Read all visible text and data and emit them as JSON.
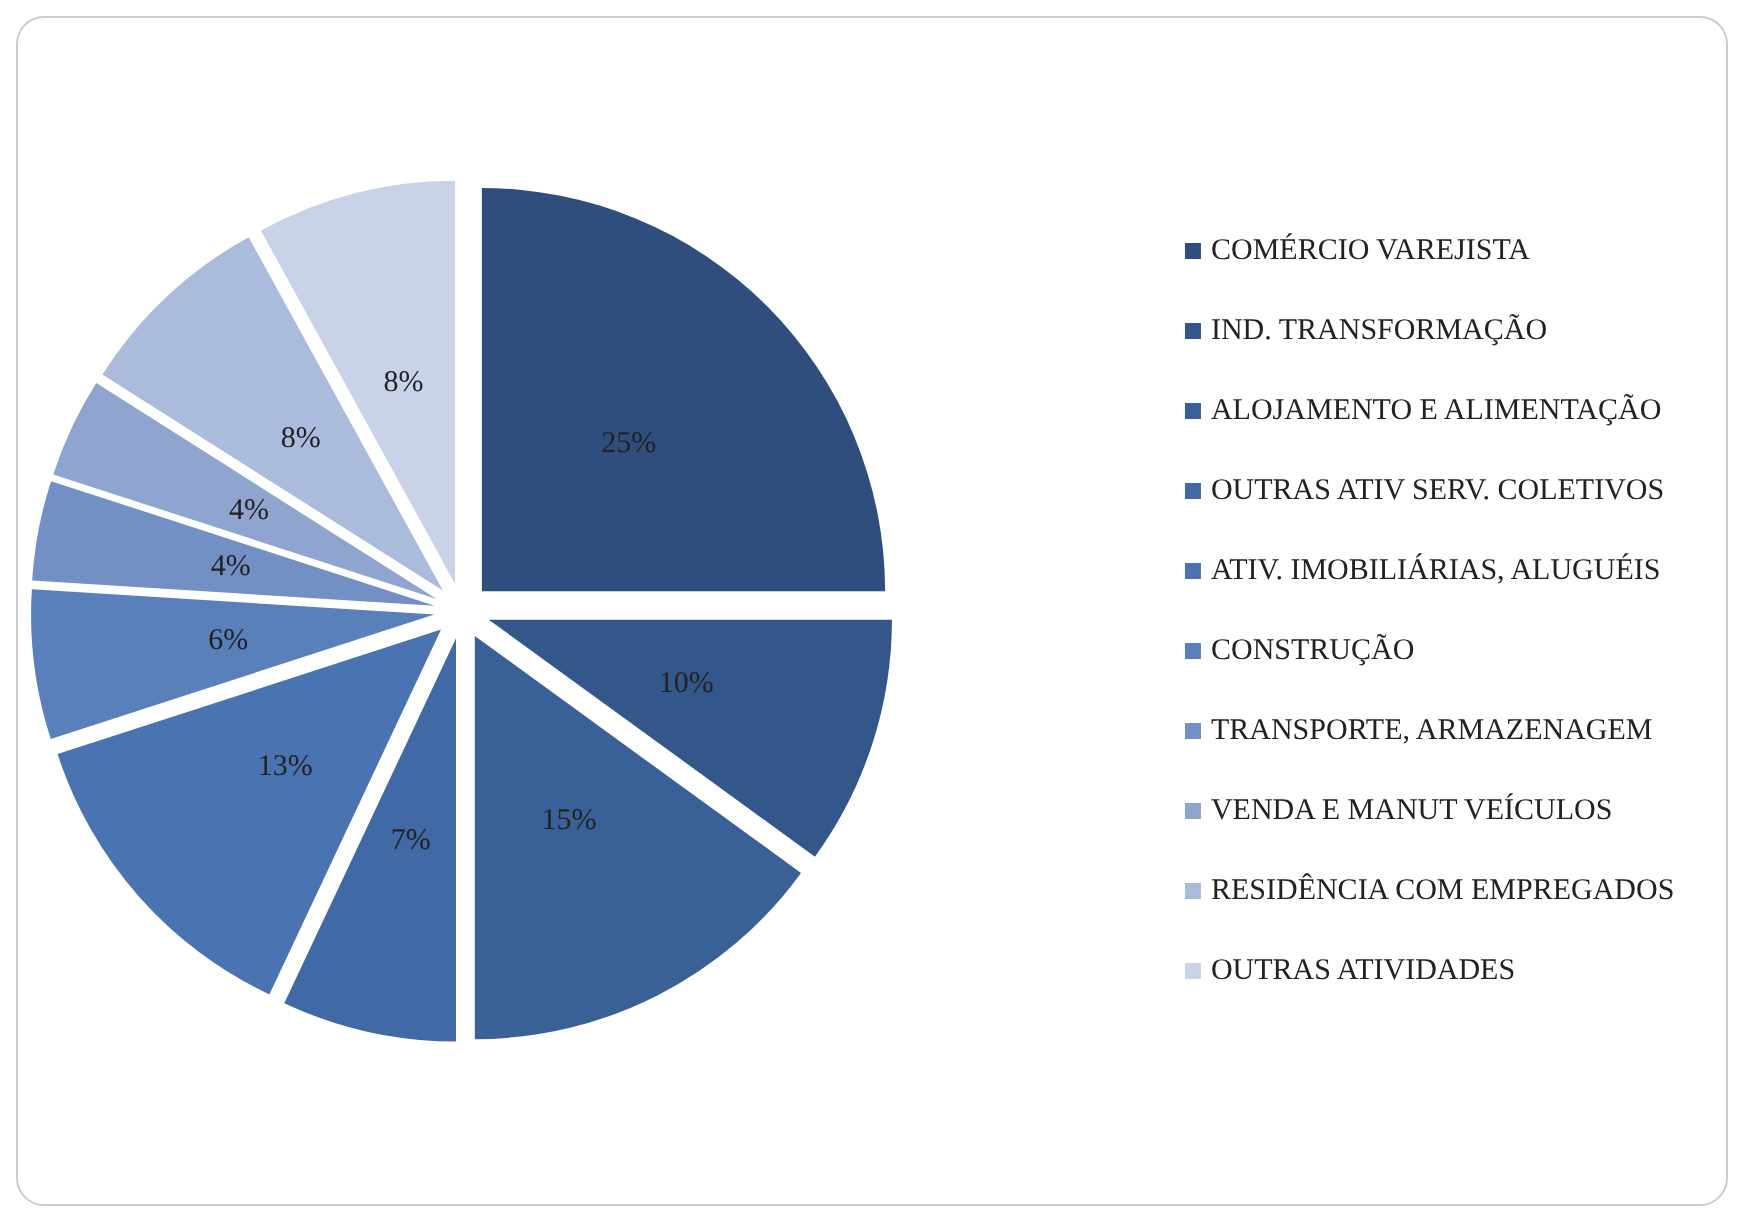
{
  "chart_data": {
    "type": "pie",
    "categories": [
      "COMÉRCIO VAREJISTA",
      "IND. TRANSFORMAÇÃO",
      "ALOJAMENTO E ALIMENTAÇÃO",
      "OUTRAS ATIV SERV. COLETIVOS",
      "ATIV. IMOBILIÁRIAS, ALUGUÉIS",
      "CONSTRUÇÃO",
      "TRANSPORTE, ARMAZENAGEM",
      "VENDA E MANUT VEÍCULOS",
      "RESIDÊNCIA COM EMPREGADOS",
      "OUTRAS ATIVIDADES"
    ],
    "values": [
      25,
      10,
      15,
      7,
      13,
      6,
      4,
      4,
      8,
      8
    ],
    "value_labels": [
      "25%",
      "10%",
      "15%",
      "7%",
      "13%",
      "6%",
      "4%",
      "4%",
      "8%",
      "8%"
    ],
    "colors": [
      "#2f4e7e",
      "#34578b",
      "#3a6098",
      "#4169a5",
      "#4a73b2",
      "#5a80bc",
      "#7390c5",
      "#8fa5cf",
      "#aabbdb",
      "#c9d3e8"
    ],
    "legend": "right"
  }
}
